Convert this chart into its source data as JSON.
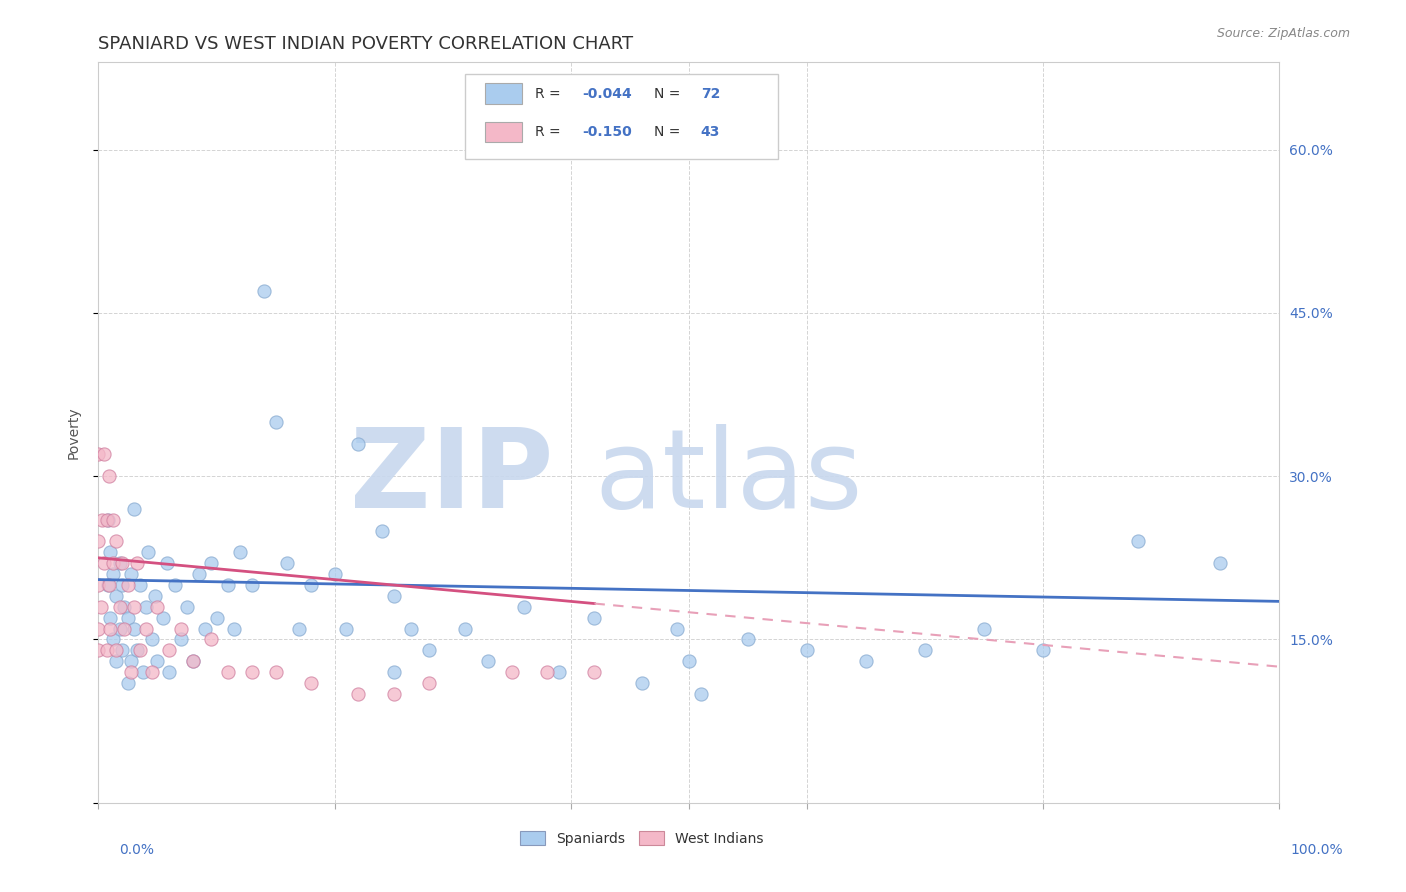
{
  "title": "SPANIARD VS WEST INDIAN POVERTY CORRELATION CHART",
  "source_text": "Source: ZipAtlas.com",
  "ylabel": "Poverty",
  "y_ticks": [
    0.0,
    0.15,
    0.3,
    0.45,
    0.6
  ],
  "y_tick_labels": [
    "",
    "15.0%",
    "30.0%",
    "45.0%",
    "60.0%"
  ],
  "x_ticks": [
    0.0,
    0.2,
    0.4,
    0.5,
    0.6,
    0.8,
    1.0
  ],
  "legend_entries": [
    {
      "label_r": "R = ",
      "label_val": "-0.044",
      "label_n": "  N = ",
      "label_nval": "72",
      "color": "#aaccee"
    },
    {
      "label_r": "R = ",
      "label_val": "-0.150",
      "label_n": "  N = ",
      "label_nval": "43",
      "color": "#f4b8c8"
    }
  ],
  "legend_bottom": [
    {
      "label": "Spaniards",
      "color": "#aaccee"
    },
    {
      "label": "West Indians",
      "color": "#f4b8c8"
    }
  ],
  "spaniards_x": [
    0.008,
    0.008,
    0.01,
    0.01,
    0.012,
    0.012,
    0.015,
    0.015,
    0.018,
    0.018,
    0.02,
    0.02,
    0.022,
    0.025,
    0.025,
    0.028,
    0.028,
    0.03,
    0.03,
    0.033,
    0.035,
    0.038,
    0.04,
    0.042,
    0.045,
    0.048,
    0.05,
    0.055,
    0.058,
    0.06,
    0.065,
    0.07,
    0.075,
    0.08,
    0.085,
    0.09,
    0.095,
    0.1,
    0.11,
    0.115,
    0.12,
    0.13,
    0.14,
    0.15,
    0.16,
    0.17,
    0.18,
    0.2,
    0.21,
    0.22,
    0.24,
    0.25,
    0.265,
    0.28,
    0.31,
    0.33,
    0.36,
    0.39,
    0.42,
    0.46,
    0.49,
    0.5,
    0.51,
    0.55,
    0.6,
    0.65,
    0.7,
    0.75,
    0.8,
    0.88,
    0.95,
    0.25
  ],
  "spaniards_y": [
    0.2,
    0.26,
    0.17,
    0.23,
    0.15,
    0.21,
    0.13,
    0.19,
    0.16,
    0.22,
    0.14,
    0.2,
    0.18,
    0.11,
    0.17,
    0.13,
    0.21,
    0.16,
    0.27,
    0.14,
    0.2,
    0.12,
    0.18,
    0.23,
    0.15,
    0.19,
    0.13,
    0.17,
    0.22,
    0.12,
    0.2,
    0.15,
    0.18,
    0.13,
    0.21,
    0.16,
    0.22,
    0.17,
    0.2,
    0.16,
    0.23,
    0.2,
    0.47,
    0.35,
    0.22,
    0.16,
    0.2,
    0.21,
    0.16,
    0.33,
    0.25,
    0.19,
    0.16,
    0.14,
    0.16,
    0.13,
    0.18,
    0.12,
    0.17,
    0.11,
    0.16,
    0.13,
    0.1,
    0.15,
    0.14,
    0.13,
    0.14,
    0.16,
    0.14,
    0.24,
    0.22,
    0.12
  ],
  "west_indians_x": [
    0.0,
    0.0,
    0.0,
    0.0,
    0.0,
    0.002,
    0.003,
    0.005,
    0.005,
    0.007,
    0.007,
    0.009,
    0.009,
    0.01,
    0.012,
    0.012,
    0.015,
    0.015,
    0.018,
    0.02,
    0.022,
    0.025,
    0.028,
    0.03,
    0.033,
    0.035,
    0.04,
    0.045,
    0.05,
    0.06,
    0.07,
    0.08,
    0.095,
    0.11,
    0.13,
    0.15,
    0.18,
    0.22,
    0.25,
    0.28,
    0.35,
    0.38,
    0.42
  ],
  "west_indians_y": [
    0.14,
    0.2,
    0.24,
    0.16,
    0.32,
    0.18,
    0.26,
    0.22,
    0.32,
    0.14,
    0.26,
    0.2,
    0.3,
    0.16,
    0.22,
    0.26,
    0.14,
    0.24,
    0.18,
    0.22,
    0.16,
    0.2,
    0.12,
    0.18,
    0.22,
    0.14,
    0.16,
    0.12,
    0.18,
    0.14,
    0.16,
    0.13,
    0.15,
    0.12,
    0.12,
    0.12,
    0.11,
    0.1,
    0.1,
    0.11,
    0.12,
    0.12,
    0.12
  ],
  "spaniard_color": "#aaccee",
  "west_indian_color": "#f4b8c8",
  "spaniard_line_color": "#4472c4",
  "west_indian_line_color": "#d45080",
  "west_indian_dashed_color": "#e8a0b8",
  "background_color": "#ffffff",
  "plot_bg_color": "#ffffff",
  "grid_color": "#d0d0d0",
  "watermark_zip_color": "#c8d8ee",
  "watermark_atlas_color": "#c8d8ee",
  "xlim": [
    0.0,
    1.0
  ],
  "ylim": [
    0.0,
    0.68
  ],
  "title_fontsize": 13,
  "axis_label_fontsize": 10,
  "tick_fontsize": 10,
  "legend_fontsize": 10,
  "source_fontsize": 9
}
